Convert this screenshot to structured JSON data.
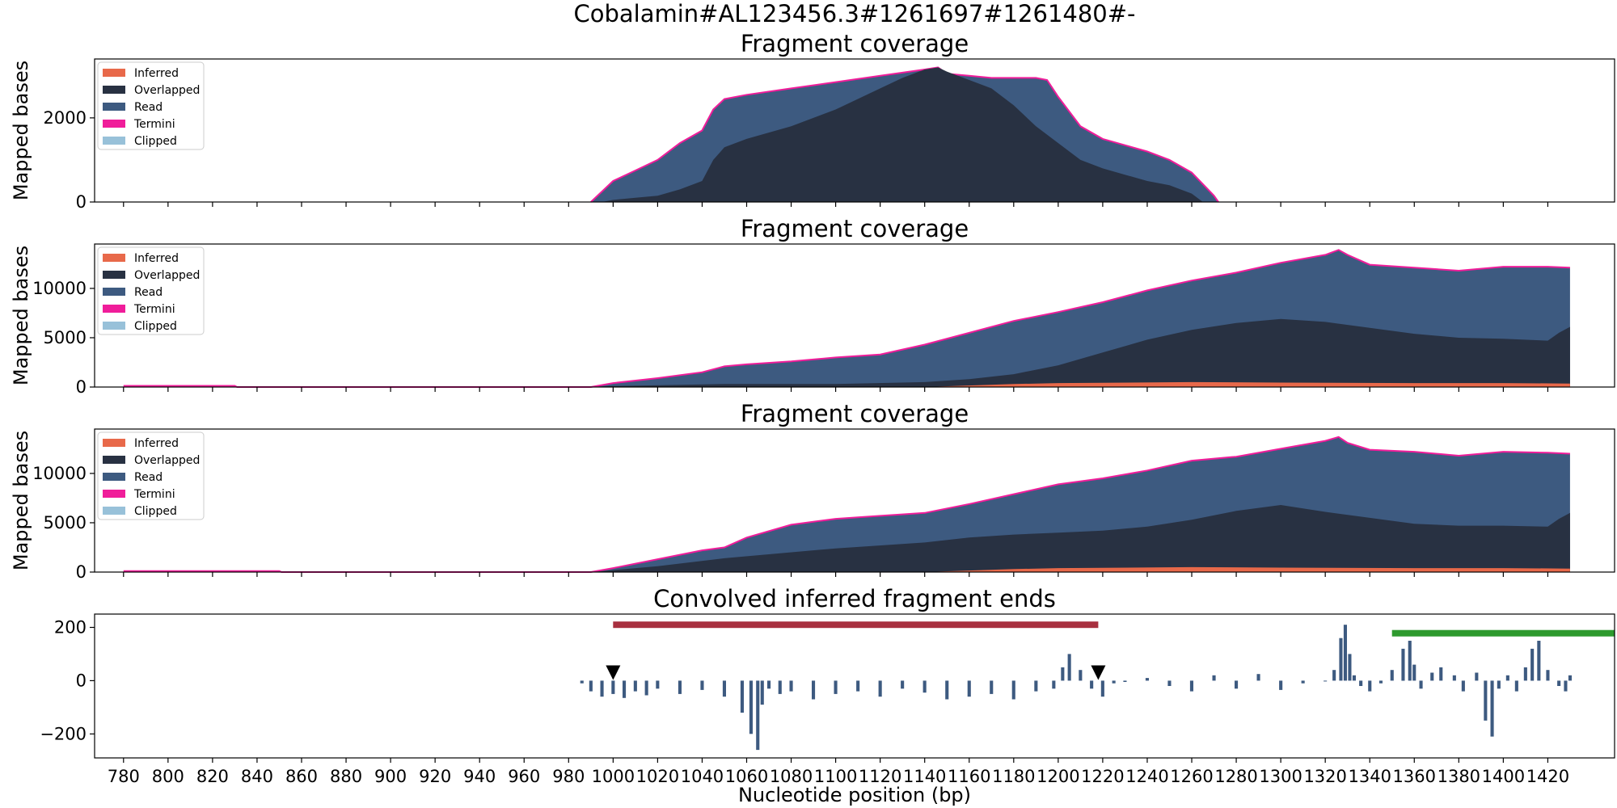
{
  "figure_title": "Cobalamin#AL123456.3#1261697#1261480#-",
  "colors": {
    "inferred": "#e8694a",
    "overlapped": "#283142",
    "read": "#3d5a80",
    "termini": "#f01d9a",
    "clipped": "#98c1d9",
    "ends_bar": "#3d5a80",
    "red_bar": "#a8303f",
    "green_bar": "#2e9a2e",
    "marker": "#000000"
  },
  "xaxis": {
    "label": "Nucleotide position (bp)",
    "range": [
      767,
      1450
    ],
    "ticks": [
      780,
      800,
      820,
      840,
      860,
      880,
      900,
      920,
      940,
      960,
      980,
      1000,
      1020,
      1040,
      1060,
      1080,
      1100,
      1120,
      1140,
      1160,
      1180,
      1200,
      1220,
      1240,
      1260,
      1280,
      1300,
      1320,
      1340,
      1360,
      1380,
      1400,
      1420
    ],
    "tick_labels": [
      "780",
      "800",
      "820",
      "840",
      "860",
      "880",
      "900",
      "920",
      "940",
      "960",
      "980",
      "1000",
      "1020",
      "1040",
      "1060",
      "1080",
      "1100",
      "1120",
      "1140",
      "1160",
      "1180",
      "1200",
      "1220",
      "1240",
      "1260",
      "1280",
      "1300",
      "1320",
      "1340",
      "1360",
      "1380",
      "1400",
      "1420"
    ]
  },
  "legend": [
    {
      "key": "inferred",
      "label": "Inferred"
    },
    {
      "key": "overlapped",
      "label": "Overlapped"
    },
    {
      "key": "read",
      "label": "Read"
    },
    {
      "key": "termini",
      "label": "Termini"
    },
    {
      "key": "clipped",
      "label": "Clipped"
    }
  ],
  "chart_data": [
    {
      "type": "area",
      "title": "Fragment coverage",
      "ylabel": "Mapped bases",
      "ylim": [
        0,
        3400
      ],
      "yticks": [
        0,
        2000
      ],
      "ytick_labels": [
        "0",
        "2000"
      ],
      "stack": "overlay",
      "series": [
        {
          "name": "Read",
          "key": "read",
          "x": [
            990,
            995,
            1000,
            1010,
            1020,
            1030,
            1040,
            1045,
            1050,
            1060,
            1080,
            1100,
            1120,
            1140,
            1146,
            1150,
            1160,
            1170,
            1180,
            1190,
            1195,
            1200,
            1210,
            1220,
            1230,
            1240,
            1250,
            1260,
            1270,
            1272
          ],
          "values": [
            0,
            250,
            500,
            750,
            1000,
            1400,
            1700,
            2200,
            2450,
            2550,
            2700,
            2850,
            3000,
            3150,
            3200,
            3050,
            3000,
            2950,
            2950,
            2950,
            2900,
            2500,
            1800,
            1500,
            1350,
            1200,
            1000,
            700,
            150,
            0
          ]
        },
        {
          "name": "Overlapped",
          "key": "overlapped",
          "x": [
            995,
            1000,
            1010,
            1020,
            1030,
            1040,
            1045,
            1050,
            1060,
            1080,
            1100,
            1120,
            1130,
            1140,
            1146,
            1150,
            1160,
            1170,
            1180,
            1190,
            1200,
            1210,
            1220,
            1230,
            1240,
            1250,
            1260,
            1265
          ],
          "values": [
            0,
            50,
            100,
            150,
            300,
            500,
            1000,
            1300,
            1500,
            1800,
            2200,
            2700,
            2950,
            3150,
            3200,
            3100,
            2900,
            2700,
            2300,
            1800,
            1400,
            1000,
            800,
            650,
            500,
            400,
            200,
            0
          ]
        },
        {
          "name": "Inferred",
          "key": "inferred",
          "x": [
            995,
            1265
          ],
          "values": [
            0,
            0
          ]
        }
      ]
    },
    {
      "type": "area",
      "title": "Fragment coverage",
      "ylabel": "Mapped bases",
      "ylim": [
        0,
        14500
      ],
      "yticks": [
        0,
        5000,
        10000
      ],
      "ytick_labels": [
        "0",
        "5000",
        "10000"
      ],
      "stack": "overlay",
      "series": [
        {
          "name": "Read",
          "key": "read",
          "x": [
            780,
            830,
            831,
            990,
            1000,
            1020,
            1040,
            1050,
            1060,
            1080,
            1100,
            1120,
            1140,
            1160,
            1180,
            1200,
            1220,
            1240,
            1260,
            1280,
            1300,
            1320,
            1326,
            1330,
            1340,
            1360,
            1380,
            1400,
            1420,
            1430
          ],
          "values": [
            120,
            120,
            0,
            0,
            400,
            900,
            1500,
            2100,
            2300,
            2600,
            3000,
            3300,
            4300,
            5500,
            6700,
            7600,
            8600,
            9800,
            10800,
            11600,
            12600,
            13400,
            13900,
            13400,
            12400,
            12100,
            11800,
            12200,
            12200,
            12100
          ]
        },
        {
          "name": "Overlapped",
          "key": "overlapped",
          "x": [
            990,
            1000,
            1050,
            1100,
            1140,
            1160,
            1180,
            1200,
            1220,
            1240,
            1260,
            1280,
            1300,
            1320,
            1340,
            1360,
            1380,
            1400,
            1420,
            1425,
            1430
          ],
          "values": [
            0,
            100,
            300,
            300,
            500,
            800,
            1300,
            2200,
            3500,
            4800,
            5800,
            6500,
            6900,
            6600,
            6000,
            5400,
            5000,
            4900,
            4700,
            5500,
            6100
          ]
        },
        {
          "name": "Inferred",
          "key": "inferred",
          "x": [
            1140,
            1180,
            1200,
            1260,
            1300,
            1360,
            1400,
            1430
          ],
          "values": [
            0,
            300,
            400,
            500,
            450,
            400,
            400,
            350
          ]
        }
      ]
    },
    {
      "type": "area",
      "title": "Fragment coverage",
      "ylabel": "Mapped bases",
      "ylim": [
        0,
        14500
      ],
      "yticks": [
        0,
        5000,
        10000
      ],
      "ytick_labels": [
        "0",
        "5000",
        "10000"
      ],
      "stack": "overlay",
      "series": [
        {
          "name": "Read",
          "key": "read",
          "x": [
            780,
            850,
            851,
            990,
            1000,
            1020,
            1040,
            1050,
            1060,
            1080,
            1100,
            1120,
            1140,
            1160,
            1180,
            1200,
            1220,
            1240,
            1260,
            1280,
            1300,
            1320,
            1326,
            1330,
            1340,
            1360,
            1380,
            1400,
            1420,
            1430
          ],
          "values": [
            100,
            100,
            0,
            0,
            400,
            1300,
            2200,
            2500,
            3500,
            4800,
            5400,
            5700,
            6000,
            6900,
            7900,
            8900,
            9500,
            10300,
            11300,
            11700,
            12500,
            13300,
            13700,
            13100,
            12400,
            12200,
            11800,
            12200,
            12100,
            12000
          ]
        },
        {
          "name": "Overlapped",
          "key": "overlapped",
          "x": [
            990,
            1000,
            1020,
            1050,
            1100,
            1140,
            1160,
            1180,
            1200,
            1220,
            1240,
            1260,
            1280,
            1300,
            1320,
            1340,
            1360,
            1380,
            1400,
            1420,
            1425,
            1430
          ],
          "values": [
            0,
            200,
            600,
            1400,
            2400,
            3000,
            3500,
            3800,
            4000,
            4200,
            4600,
            5300,
            6200,
            6800,
            6100,
            5500,
            4900,
            4700,
            4700,
            4600,
            5400,
            6000
          ]
        },
        {
          "name": "Inferred",
          "key": "inferred",
          "x": [
            1140,
            1180,
            1200,
            1260,
            1300,
            1360,
            1400,
            1430
          ],
          "values": [
            0,
            300,
            400,
            500,
            450,
            400,
            400,
            350
          ]
        }
      ]
    },
    {
      "type": "bar",
      "title": "Convolved inferred fragment ends",
      "ylabel": "",
      "ylim": [
        -290,
        250
      ],
      "yticks": [
        -200,
        0,
        200
      ],
      "ytick_labels": [
        "−200",
        "0",
        "200"
      ],
      "bar_width": 1.5,
      "x": [
        986,
        990,
        995,
        1000,
        1005,
        1010,
        1015,
        1020,
        1030,
        1040,
        1050,
        1058,
        1062,
        1065,
        1067,
        1070,
        1075,
        1080,
        1090,
        1100,
        1110,
        1120,
        1130,
        1140,
        1150,
        1160,
        1170,
        1180,
        1190,
        1198,
        1202,
        1205,
        1210,
        1215,
        1220,
        1225,
        1230,
        1240,
        1250,
        1260,
        1270,
        1280,
        1290,
        1300,
        1310,
        1320,
        1324,
        1327,
        1329,
        1331,
        1333,
        1336,
        1340,
        1345,
        1350,
        1355,
        1358,
        1360,
        1363,
        1368,
        1372,
        1378,
        1382,
        1388,
        1392,
        1395,
        1398,
        1402,
        1406,
        1410,
        1413,
        1416,
        1420,
        1425,
        1428,
        1430
      ],
      "values": [
        -10,
        -40,
        -60,
        -50,
        -65,
        -40,
        -55,
        -30,
        -50,
        -35,
        -60,
        -120,
        -200,
        -260,
        -90,
        -30,
        -50,
        -40,
        -70,
        -50,
        -40,
        -60,
        -30,
        -45,
        -70,
        -60,
        -50,
        -70,
        -40,
        -30,
        50,
        100,
        40,
        -30,
        -60,
        -10,
        -5,
        10,
        -20,
        -40,
        20,
        -30,
        25,
        -35,
        -10,
        0,
        40,
        160,
        210,
        100,
        20,
        -20,
        -40,
        -10,
        40,
        120,
        150,
        60,
        -30,
        30,
        50,
        20,
        -40,
        30,
        -150,
        -210,
        -30,
        20,
        -40,
        50,
        120,
        150,
        40,
        -20,
        -40,
        20
      ],
      "bars_h": [
        {
          "start": 1000,
          "end": 1218,
          "value": 210,
          "key": "red_bar"
        },
        {
          "start": 1350,
          "end": 1450,
          "value": 178,
          "key": "green_bar"
        }
      ],
      "markers": [
        {
          "x": 1000,
          "y": 30,
          "shape": "triangle-down"
        },
        {
          "x": 1218,
          "y": 30,
          "shape": "triangle-down"
        }
      ]
    }
  ]
}
